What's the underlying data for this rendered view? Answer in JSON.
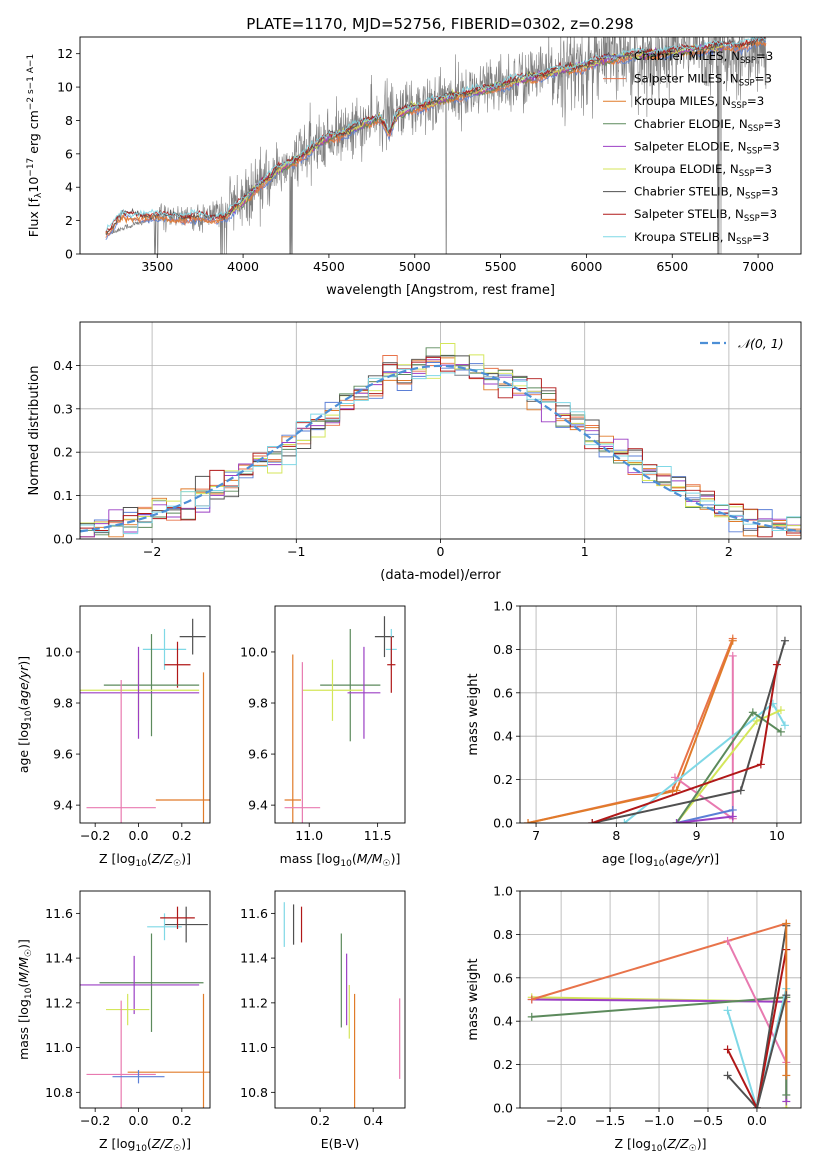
{
  "figure_title": "PLATE=1170, MJD=52756, FIBERID=0302, z=0.298",
  "colors": {
    "Chabrier MILES": "#5b7fd6",
    "Salpeter MILES": "#e8734a",
    "Kroupa MILES": "#e07b2a",
    "Chabrier ELODIE": "#5c8a5c",
    "Salpeter ELODIE": "#9b3fc4",
    "Kroupa ELODIE": "#d4e65a",
    "Chabrier STELIB": "#505050",
    "Salpeter STELIB": "#b01818",
    "Kroupa STELIB": "#7fd8e6",
    "pink": "#e87ab0",
    "data": "#7f7f7f",
    "normal": "#4c8fd6"
  },
  "chart_data": [
    {
      "id": "spectrum",
      "type": "line",
      "title": "PLATE=1170, MJD=52756, FIBERID=0302, z=0.298",
      "xlabel": "wavelength [Angstrom, rest frame]",
      "ylabel_main": "Flux [f",
      "ylabel_sub": "λ",
      "ylabel_rest": "10",
      "ylabel_exp": "−17",
      "ylabel_tail": " erg cm",
      "ylabel_units": "−2 s−1 A−1",
      "xlim": [
        3050,
        7250
      ],
      "ylim": [
        0,
        13
      ],
      "xticks": [
        3500,
        4000,
        4500,
        5000,
        5500,
        6000,
        6500,
        7000
      ],
      "yticks": [
        0,
        2,
        4,
        6,
        8,
        10,
        12
      ],
      "model_knots_x": [
        3200,
        3300,
        3400,
        3500,
        3600,
        3700,
        3800,
        3900,
        4000,
        4100,
        4200,
        4300,
        4400,
        4500,
        4600,
        4700,
        4800,
        4850,
        4900,
        5000,
        5100,
        5200,
        5300,
        5400,
        5500,
        5600,
        5700,
        5800,
        5900,
        6000,
        6100,
        6200
      ],
      "model_knots_y": [
        1.2,
        2.3,
        2.3,
        2.2,
        2.2,
        2.2,
        2.1,
        2.3,
        3.1,
        4.2,
        5.0,
        5.6,
        6.3,
        7.0,
        7.3,
        7.8,
        8.2,
        7.2,
        8.3,
        8.8,
        9.0,
        9.4,
        9.6,
        9.8,
        10.1,
        10.4,
        10.6,
        10.9,
        11.1,
        11.3,
        11.6,
        11.8
      ],
      "data_knots_x": [
        3200,
        3500,
        3800,
        4000,
        4200,
        4400,
        4600,
        4800,
        5000,
        5200,
        5400,
        5600,
        5800,
        6000,
        6200,
        6400,
        6600,
        6800,
        7000,
        7050
      ],
      "data_knots_y": [
        1.2,
        2.2,
        2.2,
        3.1,
        5.0,
        6.3,
        7.3,
        8.2,
        8.8,
        9.4,
        9.8,
        10.4,
        10.9,
        11.3,
        11.8,
        12.0,
        12.3,
        12.2,
        12.5,
        12.5
      ],
      "legend": [
        {
          "label": "Chabrier MILES, N",
          "sub": "SSP",
          "tail": "=3",
          "color": "#5b7fd6"
        },
        {
          "label": "Salpeter MILES, N",
          "sub": "SSP",
          "tail": "=3",
          "color": "#e8734a"
        },
        {
          "label": "Kroupa MILES, N",
          "sub": "SSP",
          "tail": "=3",
          "color": "#e07b2a"
        },
        {
          "label": "Chabrier ELODIE, N",
          "sub": "SSP",
          "tail": "=3",
          "color": "#5c8a5c"
        },
        {
          "label": "Salpeter ELODIE, N",
          "sub": "SSP",
          "tail": "=3",
          "color": "#9b3fc4"
        },
        {
          "label": "Kroupa ELODIE, N",
          "sub": "SSP",
          "tail": "=3",
          "color": "#d4e65a"
        },
        {
          "label": "Chabrier STELIB, N",
          "sub": "SSP",
          "tail": "=3",
          "color": "#505050"
        },
        {
          "label": "Salpeter STELIB, N",
          "sub": "SSP",
          "tail": "=3",
          "color": "#b01818"
        },
        {
          "label": "Kroupa STELIB, N",
          "sub": "SSP",
          "tail": "=3",
          "color": "#7fd8e6"
        }
      ]
    },
    {
      "id": "residuals",
      "type": "line",
      "xlabel": "(data-model)/error",
      "ylabel": "Normed distribution",
      "xlim": [
        -2.5,
        2.5
      ],
      "ylim": [
        0,
        0.5
      ],
      "xticks": [
        -2,
        -1,
        0,
        1,
        2
      ],
      "yticks": [
        0.0,
        0.1,
        0.2,
        0.3,
        0.4
      ],
      "grid": true,
      "bin_width": 0.1,
      "legend": [
        {
          "label": "𝒩(0, 1)",
          "color": "#4c8fd6"
        }
      ]
    },
    {
      "id": "age_vs_Z",
      "type": "scatter",
      "xlabel": "Z [log10(Z/Z☉)]",
      "ylabel": "age  [log10(age/yr)]",
      "xlim": [
        -0.27,
        0.33
      ],
      "ylim": [
        9.33,
        10.18
      ],
      "xticks": [
        -0.2,
        0.0,
        0.2
      ],
      "yticks": [
        9.4,
        9.6,
        9.8,
        10.0
      ],
      "points": [
        {
          "x": 0.25,
          "y": 10.06,
          "xerr": 0.06,
          "yerr": 0.07,
          "color": "#505050"
        },
        {
          "x": 0.12,
          "y": 10.01,
          "xerr": 0.1,
          "yerr": 0.08,
          "color": "#7fd8e6"
        },
        {
          "x": 0.18,
          "y": 9.95,
          "xerr": 0.06,
          "yerr": 0.09,
          "color": "#b01818"
        },
        {
          "x": 0.06,
          "y": 9.87,
          "xerr": 0.22,
          "yerr": 0.2,
          "color": "#5c8a5c"
        },
        {
          "x": 0.0,
          "y": 9.85,
          "xerr": 0.28,
          "yerr": 0.12,
          "color": "#d4e65a"
        },
        {
          "x": 0.0,
          "y": 9.84,
          "xerr": 0.28,
          "yerr": 0.18,
          "color": "#9b3fc4"
        },
        {
          "x": 0.3,
          "y": 9.42,
          "xerr": 0.22,
          "yerr": 0.5,
          "color": "#e07b2a"
        },
        {
          "x": -0.08,
          "y": 9.39,
          "xerr": 0.16,
          "yerr": 0.5,
          "color": "#e87ab0"
        }
      ]
    },
    {
      "id": "age_vs_mass",
      "type": "scatter",
      "xlabel": "mass [log10(M/M☉)]",
      "ylabel": "",
      "xlim": [
        10.75,
        11.7
      ],
      "ylim": [
        9.33,
        10.18
      ],
      "xticks": [
        11.0,
        11.5
      ],
      "yticks": [
        9.4,
        9.6,
        9.8,
        10.0
      ],
      "points": [
        {
          "x": 11.55,
          "y": 10.06,
          "xerr": 0.07,
          "yerr": 0.08,
          "color": "#505050"
        },
        {
          "x": 11.6,
          "y": 10.01,
          "xerr": 0.04,
          "yerr": 0.08,
          "color": "#7fd8e6"
        },
        {
          "x": 11.6,
          "y": 9.95,
          "xerr": 0.03,
          "yerr": 0.11,
          "color": "#b01818"
        },
        {
          "x": 11.3,
          "y": 9.87,
          "xerr": 0.22,
          "yerr": 0.22,
          "color": "#5c8a5c"
        },
        {
          "x": 11.17,
          "y": 9.85,
          "xerr": 0.22,
          "yerr": 0.12,
          "color": "#d4e65a"
        },
        {
          "x": 11.4,
          "y": 9.84,
          "xerr": 0.12,
          "yerr": 0.18,
          "color": "#9b3fc4"
        },
        {
          "x": 10.88,
          "y": 9.42,
          "xerr": 0.06,
          "yerr": 0.57,
          "color": "#e07b2a"
        },
        {
          "x": 10.95,
          "y": 9.39,
          "xerr": 0.13,
          "yerr": 0.57,
          "color": "#e87ab0"
        }
      ]
    },
    {
      "id": "weight_vs_age",
      "type": "line",
      "xlabel": "age  [log10(age/yr)]",
      "ylabel": "mass weight",
      "xlim": [
        6.8,
        10.3
      ],
      "ylim": [
        0,
        1
      ],
      "xticks": [
        7,
        8,
        9,
        10
      ],
      "yticks": [
        0.0,
        0.2,
        0.4,
        0.6,
        0.8,
        1.0
      ],
      "grid": true,
      "series": [
        {
          "color": "#e8734a",
          "x": [
            6.9,
            8.7,
            9.45
          ],
          "y": [
            0.0,
            0.15,
            0.85
          ]
        },
        {
          "color": "#e07b2a",
          "x": [
            6.9,
            8.75,
            9.45
          ],
          "y": [
            0.0,
            0.15,
            0.84
          ]
        },
        {
          "color": "#e87ab0",
          "x": [
            8.73,
            9.45,
            9.45
          ],
          "y": [
            0.21,
            0.02,
            0.77
          ]
        },
        {
          "color": "#7fd8e6",
          "x": [
            8.1,
            9.95,
            10.1
          ],
          "y": [
            0.0,
            0.55,
            0.45
          ]
        },
        {
          "color": "#d4e65a",
          "x": [
            8.75,
            9.75,
            10.05
          ],
          "y": [
            0.0,
            0.47,
            0.52
          ]
        },
        {
          "color": "#5c8a5c",
          "x": [
            8.75,
            9.7,
            10.05
          ],
          "y": [
            0.0,
            0.51,
            0.42
          ]
        },
        {
          "color": "#505050",
          "x": [
            7.7,
            9.55,
            10.1
          ],
          "y": [
            0.0,
            0.15,
            0.84
          ]
        },
        {
          "color": "#b01818",
          "x": [
            7.7,
            9.8,
            10.0
          ],
          "y": [
            0.0,
            0.27,
            0.73
          ]
        },
        {
          "color": "#5b7fd6",
          "x": [
            8.75,
            9.45
          ],
          "y": [
            0.0,
            0.06
          ]
        },
        {
          "color": "#9b3fc4",
          "x": [
            8.75,
            9.45
          ],
          "y": [
            0.0,
            0.03
          ]
        }
      ]
    },
    {
      "id": "mass_vs_Z",
      "type": "scatter",
      "xlabel": "Z [log10(Z/Z☉)]",
      "ylabel": "mass [log10(M/M☉)]",
      "xlim": [
        -0.27,
        0.33
      ],
      "ylim": [
        10.73,
        11.7
      ],
      "xticks": [
        -0.2,
        0.0,
        0.2
      ],
      "yticks": [
        10.8,
        11.0,
        11.2,
        11.4,
        11.6
      ],
      "points": [
        {
          "x": 0.22,
          "y": 11.55,
          "xerr": 0.1,
          "yerr": 0.08,
          "color": "#505050"
        },
        {
          "x": 0.12,
          "y": 11.54,
          "xerr": 0.08,
          "yerr": 0.06,
          "color": "#7fd8e6"
        },
        {
          "x": 0.18,
          "y": 11.58,
          "xerr": 0.08,
          "yerr": 0.05,
          "color": "#b01818"
        },
        {
          "x": 0.06,
          "y": 11.29,
          "xerr": 0.24,
          "yerr": 0.22,
          "color": "#5c8a5c"
        },
        {
          "x": -0.02,
          "y": 11.28,
          "xerr": 0.3,
          "yerr": 0.13,
          "color": "#9b3fc4"
        },
        {
          "x": -0.05,
          "y": 11.17,
          "xerr": 0.1,
          "yerr": 0.07,
          "color": "#d4e65a"
        },
        {
          "x": 0.3,
          "y": 10.89,
          "xerr": 0.35,
          "yerr": 0.35,
          "color": "#e07b2a"
        },
        {
          "x": -0.08,
          "y": 10.88,
          "xerr": 0.16,
          "yerr": 0.33,
          "color": "#e87ab0"
        },
        {
          "x": 0.0,
          "y": 10.87,
          "xerr": 0.12,
          "yerr": 0.03,
          "color": "#5b7fd6"
        }
      ]
    },
    {
      "id": "mass_vs_ebv",
      "type": "scatter",
      "xlabel": "E(B-V)",
      "ylabel": "",
      "xlim": [
        0.03,
        0.52
      ],
      "ylim": [
        10.73,
        11.7
      ],
      "xticks": [
        0.2,
        0.4
      ],
      "yticks": [
        10.8,
        11.0,
        11.2,
        11.4,
        11.6
      ],
      "points": [
        {
          "x": 0.065,
          "y": 11.55,
          "xerr": 0,
          "yerr": 0.1,
          "color": "#7fd8e6"
        },
        {
          "x": 0.1,
          "y": 11.55,
          "xerr": 0,
          "yerr": 0.09,
          "color": "#505050"
        },
        {
          "x": 0.13,
          "y": 11.55,
          "xerr": 0,
          "yerr": 0.08,
          "color": "#b01818"
        },
        {
          "x": 0.28,
          "y": 11.3,
          "xerr": 0,
          "yerr": 0.21,
          "color": "#5c8a5c"
        },
        {
          "x": 0.3,
          "y": 11.26,
          "xerr": 0,
          "yerr": 0.16,
          "color": "#9b3fc4"
        },
        {
          "x": 0.31,
          "y": 11.16,
          "xerr": 0,
          "yerr": 0.12,
          "color": "#d4e65a"
        },
        {
          "x": 0.33,
          "y": 10.98,
          "xerr": 0,
          "yerr": 0.26,
          "color": "#e07b2a"
        },
        {
          "x": 0.5,
          "y": 11.04,
          "xerr": 0,
          "yerr": 0.18,
          "color": "#e87ab0"
        }
      ]
    },
    {
      "id": "weight_vs_Z",
      "type": "line",
      "xlabel": "Z [log10(Z/Z☉)]",
      "ylabel": "mass weight",
      "xlim": [
        -2.42,
        0.45
      ],
      "ylim": [
        0,
        1
      ],
      "xticks": [
        -2.0,
        -1.5,
        -1.0,
        -0.5,
        0.0
      ],
      "yticks": [
        0.0,
        0.2,
        0.4,
        0.6,
        0.8,
        1.0
      ],
      "grid": true,
      "series": [
        {
          "color": "#d4e65a",
          "x": [
            -2.3,
            0.3,
            0.3
          ],
          "y": [
            0.51,
            0.49,
            0.0
          ]
        },
        {
          "color": "#9b3fc4",
          "x": [
            -2.3,
            0.3,
            0.3
          ],
          "y": [
            0.5,
            0.49,
            0.03
          ]
        },
        {
          "color": "#5c8a5c",
          "x": [
            -2.3,
            0.3,
            0.3
          ],
          "y": [
            0.42,
            0.51,
            0.06
          ]
        },
        {
          "color": "#e8734a",
          "x": [
            -2.3,
            0.3
          ],
          "y": [
            0.5,
            0.85
          ]
        },
        {
          "color": "#e87ab0",
          "x": [
            -0.3,
            0.3
          ],
          "y": [
            0.77,
            0.21
          ]
        },
        {
          "color": "#7fd8e6",
          "x": [
            -0.3,
            0.0,
            0.3
          ],
          "y": [
            0.45,
            0.0,
            0.55
          ]
        },
        {
          "color": "#505050",
          "x": [
            -0.3,
            0.0,
            0.3
          ],
          "y": [
            0.15,
            0.0,
            0.84
          ]
        },
        {
          "color": "#b01818",
          "x": [
            -0.3,
            0.0,
            0.3
          ],
          "y": [
            0.27,
            0.0,
            0.73
          ]
        },
        {
          "color": "#e07b2a",
          "x": [
            0.3,
            0.3
          ],
          "y": [
            0.15,
            0.85
          ]
        },
        {
          "color": "#505050",
          "x": [
            0.0,
            0.3
          ],
          "y": [
            0.0,
            0.52
          ]
        }
      ]
    }
  ]
}
